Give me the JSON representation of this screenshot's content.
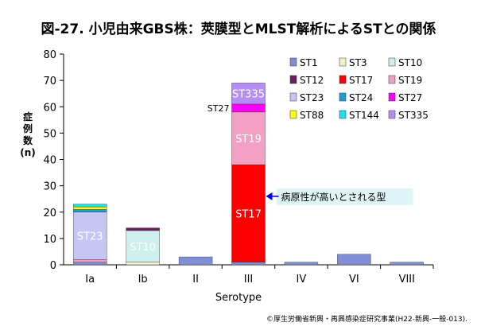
{
  "chart_data": {
    "type": "bar",
    "stacked": true,
    "title": "図-27. 小児由来GBS株：莢膜型とMLST解析によるSTとの関係",
    "xlabel": "Serotype",
    "ylabel": [
      "症",
      "例",
      "数",
      "(n)"
    ],
    "ylim": [
      0,
      80
    ],
    "yticks": [
      0,
      10,
      20,
      30,
      40,
      50,
      60,
      70,
      80
    ],
    "grid": false,
    "legend_position": "top-right",
    "categories": [
      "Ia",
      "Ib",
      "II",
      "III",
      "IV",
      "VI",
      "VIII"
    ],
    "series": [
      {
        "name": "ST1",
        "color": "#7f8fd6",
        "values": [
          1,
          0,
          3,
          1,
          1,
          4,
          1
        ]
      },
      {
        "name": "ST3",
        "color": "#f3f0c6",
        "values": [
          0,
          1,
          0,
          0,
          0,
          0,
          0
        ]
      },
      {
        "name": "ST10",
        "color": "#cfeeee",
        "values": [
          0,
          12,
          0,
          0,
          0,
          0,
          0
        ]
      },
      {
        "name": "ST12",
        "color": "#6b1d5e",
        "values": [
          0,
          1,
          0,
          0,
          0,
          0,
          0
        ]
      },
      {
        "name": "ST17",
        "color": "#ff0000",
        "values": [
          0,
          0,
          0,
          37,
          0,
          0,
          0
        ]
      },
      {
        "name": "ST19",
        "color": "#f2a1c4",
        "values": [
          1,
          0,
          0,
          20,
          0,
          0,
          0
        ]
      },
      {
        "name": "ST23",
        "color": "#c6c6f4",
        "values": [
          18,
          0,
          0,
          0,
          0,
          0,
          0
        ]
      },
      {
        "name": "ST24",
        "color": "#1e9fd0",
        "values": [
          1,
          0,
          0,
          0,
          0,
          0,
          0
        ]
      },
      {
        "name": "ST27",
        "color": "#ff00ff",
        "values": [
          0,
          0,
          0,
          3,
          0,
          0,
          0
        ]
      },
      {
        "name": "ST88",
        "color": "#ffff00",
        "values": [
          1,
          0,
          0,
          0,
          0,
          0,
          0
        ]
      },
      {
        "name": "ST144",
        "color": "#19e3e8",
        "values": [
          1,
          0,
          0,
          0,
          0,
          0,
          0
        ]
      },
      {
        "name": "ST335",
        "color": "#b48ef2",
        "values": [
          0,
          0,
          0,
          8,
          0,
          0,
          0
        ]
      }
    ],
    "segment_labels": [
      {
        "category": "Ia",
        "series": "ST23",
        "text": "ST23"
      },
      {
        "category": "Ib",
        "series": "ST10",
        "text": "ST10"
      },
      {
        "category": "III",
        "series": "ST17",
        "text": "ST17"
      },
      {
        "category": "III",
        "series": "ST19",
        "text": "ST19"
      },
      {
        "category": "III",
        "series": "ST335",
        "text": "ST335"
      }
    ],
    "annotations": [
      {
        "text": "ST27",
        "category": "III",
        "series": "ST27",
        "type": "side-label"
      },
      {
        "text": "病原性が高いとされる型",
        "category": "III",
        "series": "ST17",
        "type": "arrow-callout"
      }
    ]
  },
  "footer": {
    "copyright": "©厚生労働省新興・再興感染症研究事業(H22-新興-一般-013)."
  }
}
